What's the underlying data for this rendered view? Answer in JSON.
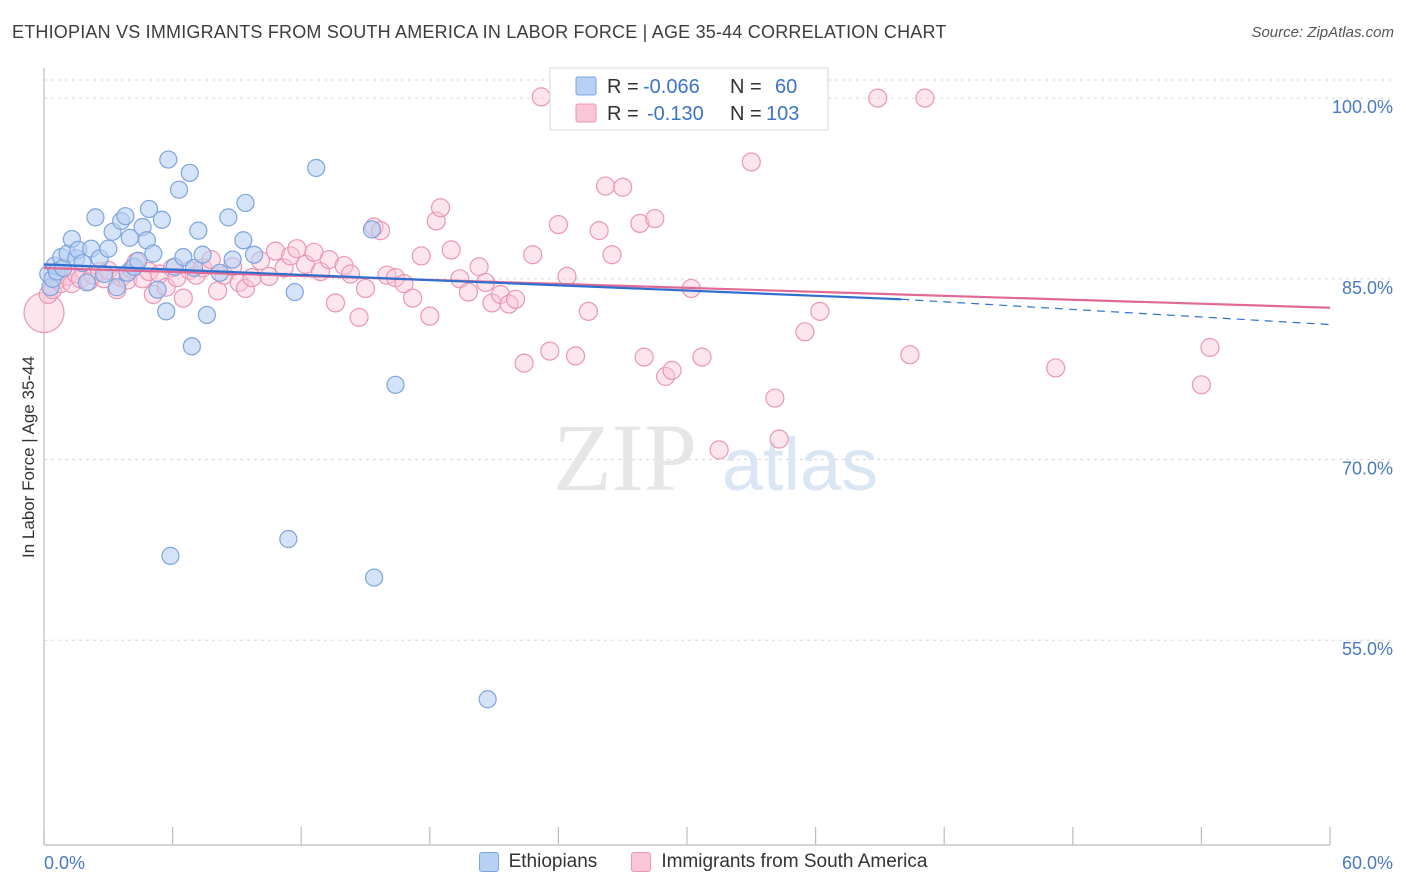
{
  "header": {
    "title": "ETHIOPIAN VS IMMIGRANTS FROM SOUTH AMERICA IN LABOR FORCE | AGE 35-44 CORRELATION CHART",
    "source": "Source: ZipAtlas.com"
  },
  "colors": {
    "series_a_fill": "#b8d0f3",
    "series_a_stroke": "#7ea4dc",
    "series_a_line": "#2f6fce",
    "series_b_fill": "#f8c6d7",
    "series_b_stroke": "#eb96b3",
    "series_b_line": "#e06a94",
    "grid": "#d6d6d6",
    "axis_label": "#4a78c2"
  },
  "watermark": {
    "zip": "ZIP",
    "atlas": "atlas"
  },
  "legend": {
    "rows": [
      {
        "r_label": "R =",
        "r_value": "-0.066",
        "n_label": "N =",
        "n_value": "60"
      },
      {
        "r_label": "R =",
        "r_value": "-0.130",
        "n_label": "N =",
        "n_value": "103"
      }
    ]
  },
  "chart_data": {
    "type": "scatter",
    "title": "ETHIOPIAN VS IMMIGRANTS FROM SOUTH AMERICA IN LABOR FORCE | AGE 35-44 CORRELATION CHART",
    "xlabel": "",
    "ylabel": "In Labor Force | Age 35-44",
    "xlim": [
      0,
      60
    ],
    "ylim": [
      38,
      102.5
    ],
    "x_tick_labels": [
      {
        "value": 0,
        "label": "0.0%"
      },
      {
        "value": 60,
        "label": "60.0%"
      }
    ],
    "y_ticks": [
      {
        "value": 55,
        "label": "55.0%"
      },
      {
        "value": 70,
        "label": "70.0%"
      },
      {
        "value": 85,
        "label": "85.0%"
      },
      {
        "value": 100,
        "label": "100.0%"
      }
    ],
    "grid": true,
    "legend_position": "top-center",
    "series": [
      {
        "name": "Ethiopians",
        "r": -0.066,
        "n": 60,
        "trend": {
          "x0": 0,
          "y0": 86.2,
          "x1": 40,
          "y1": 83.3,
          "dashed_to_x": 60,
          "dashed_to_y": 81.2
        },
        "points": [
          [
            0.2,
            85.4
          ],
          [
            0.3,
            84.3
          ],
          [
            0.4,
            85.0
          ],
          [
            0.5,
            86.1
          ],
          [
            0.6,
            85.6
          ],
          [
            0.8,
            86.8
          ],
          [
            0.9,
            85.9
          ],
          [
            1.1,
            87.1
          ],
          [
            1.3,
            88.3
          ],
          [
            1.5,
            86.7
          ],
          [
            1.6,
            87.4
          ],
          [
            1.8,
            86.3
          ],
          [
            2.0,
            84.7
          ],
          [
            2.2,
            87.5
          ],
          [
            2.4,
            90.1
          ],
          [
            2.6,
            86.7
          ],
          [
            2.8,
            85.4
          ],
          [
            3.0,
            87.5
          ],
          [
            3.2,
            88.9
          ],
          [
            3.4,
            84.3
          ],
          [
            3.6,
            89.8
          ],
          [
            3.8,
            90.2
          ],
          [
            3.9,
            85.5
          ],
          [
            4.0,
            88.4
          ],
          [
            4.2,
            86.0
          ],
          [
            4.4,
            86.5
          ],
          [
            4.6,
            89.3
          ],
          [
            4.8,
            88.2
          ],
          [
            4.9,
            90.8
          ],
          [
            5.1,
            87.1
          ],
          [
            5.3,
            84.1
          ],
          [
            5.5,
            89.9
          ],
          [
            5.7,
            82.3
          ],
          [
            5.8,
            94.9
          ],
          [
            5.9,
            62.0
          ],
          [
            6.1,
            86.0
          ],
          [
            6.3,
            92.4
          ],
          [
            6.5,
            86.8
          ],
          [
            6.8,
            93.8
          ],
          [
            6.9,
            79.4
          ],
          [
            7.0,
            85.9
          ],
          [
            7.2,
            89.0
          ],
          [
            7.4,
            87.0
          ],
          [
            7.6,
            82.0
          ],
          [
            8.2,
            85.5
          ],
          [
            8.6,
            90.1
          ],
          [
            8.8,
            86.6
          ],
          [
            9.3,
            88.2
          ],
          [
            9.4,
            91.3
          ],
          [
            9.8,
            87.0
          ],
          [
            11.7,
            83.9
          ],
          [
            11.4,
            63.4
          ],
          [
            12.7,
            94.2
          ],
          [
            15.3,
            89.1
          ],
          [
            15.4,
            60.2
          ],
          [
            16.4,
            76.2
          ],
          [
            20.7,
            50.1
          ],
          [
            30.5,
            100.0
          ],
          [
            31.3,
            100.0
          ],
          [
            32.7,
            99.9
          ]
        ]
      },
      {
        "name": "Immigrants from South America",
        "r": -0.13,
        "n": 103,
        "trend": {
          "x0": 0,
          "y0": 85.9,
          "x1": 60,
          "y1": 82.6
        },
        "points": [
          [
            0.0,
            82.2
          ],
          [
            0.2,
            83.7
          ],
          [
            0.4,
            84.1
          ],
          [
            0.6,
            84.9
          ],
          [
            0.8,
            84.6
          ],
          [
            1.1,
            85.2
          ],
          [
            1.3,
            84.6
          ],
          [
            1.5,
            85.4
          ],
          [
            1.7,
            85.0
          ],
          [
            2.1,
            84.8
          ],
          [
            2.3,
            85.3
          ],
          [
            2.6,
            85.6
          ],
          [
            2.8,
            85.0
          ],
          [
            3.0,
            85.7
          ],
          [
            3.4,
            84.1
          ],
          [
            3.6,
            85.1
          ],
          [
            3.9,
            84.9
          ],
          [
            4.1,
            85.8
          ],
          [
            4.3,
            86.4
          ],
          [
            4.6,
            85.0
          ],
          [
            4.9,
            85.6
          ],
          [
            5.1,
            83.7
          ],
          [
            5.4,
            85.4
          ],
          [
            5.7,
            84.3
          ],
          [
            6.0,
            85.9
          ],
          [
            6.2,
            85.1
          ],
          [
            6.5,
            83.4
          ],
          [
            6.8,
            85.7
          ],
          [
            7.1,
            85.3
          ],
          [
            7.4,
            85.9
          ],
          [
            7.8,
            86.6
          ],
          [
            8.1,
            84.0
          ],
          [
            8.4,
            85.3
          ],
          [
            8.8,
            86.0
          ],
          [
            9.1,
            84.7
          ],
          [
            9.4,
            84.2
          ],
          [
            9.7,
            85.1
          ],
          [
            10.1,
            86.5
          ],
          [
            10.5,
            85.2
          ],
          [
            10.8,
            87.3
          ],
          [
            11.2,
            85.9
          ],
          [
            11.5,
            86.9
          ],
          [
            11.8,
            87.5
          ],
          [
            12.2,
            86.2
          ],
          [
            12.6,
            87.2
          ],
          [
            12.9,
            85.6
          ],
          [
            13.3,
            86.6
          ],
          [
            13.6,
            83.0
          ],
          [
            14.0,
            86.1
          ],
          [
            14.3,
            85.4
          ],
          [
            14.7,
            81.8
          ],
          [
            15.0,
            84.2
          ],
          [
            15.4,
            89.3
          ],
          [
            15.7,
            89.0
          ],
          [
            16.0,
            85.3
          ],
          [
            16.4,
            85.1
          ],
          [
            16.8,
            84.6
          ],
          [
            17.2,
            83.4
          ],
          [
            17.6,
            86.9
          ],
          [
            18.0,
            81.9
          ],
          [
            18.3,
            89.8
          ],
          [
            18.5,
            90.9
          ],
          [
            19.0,
            87.4
          ],
          [
            19.4,
            85.0
          ],
          [
            19.8,
            83.9
          ],
          [
            20.3,
            86.0
          ],
          [
            20.6,
            84.7
          ],
          [
            20.9,
            83.0
          ],
          [
            21.3,
            83.7
          ],
          [
            21.7,
            82.9
          ],
          [
            22.0,
            83.3
          ],
          [
            22.4,
            78.0
          ],
          [
            22.8,
            87.0
          ],
          [
            23.2,
            100.1
          ],
          [
            23.6,
            79.0
          ],
          [
            24.0,
            89.5
          ],
          [
            24.4,
            85.2
          ],
          [
            24.8,
            78.6
          ],
          [
            25.4,
            82.3
          ],
          [
            25.9,
            89.0
          ],
          [
            26.2,
            92.7
          ],
          [
            26.5,
            87.0
          ],
          [
            27.0,
            92.6
          ],
          [
            27.8,
            89.6
          ],
          [
            28.0,
            78.5
          ],
          [
            28.5,
            90.0
          ],
          [
            29.0,
            76.9
          ],
          [
            29.3,
            77.4
          ],
          [
            30.2,
            84.2
          ],
          [
            30.7,
            78.5
          ],
          [
            31.5,
            70.8
          ],
          [
            33.0,
            94.7
          ],
          [
            34.1,
            75.1
          ],
          [
            34.3,
            71.7
          ],
          [
            35.5,
            80.6
          ],
          [
            36.2,
            82.3
          ],
          [
            38.9,
            100.0
          ],
          [
            40.4,
            78.7
          ],
          [
            41.1,
            100.0
          ],
          [
            47.2,
            77.6
          ],
          [
            54.0,
            76.2
          ],
          [
            54.4,
            79.3
          ],
          [
            24.9,
            100.0
          ]
        ]
      }
    ]
  },
  "bottom_legend": {
    "items": [
      {
        "label": "Ethiopians"
      },
      {
        "label": "Immigrants from South America"
      }
    ]
  }
}
